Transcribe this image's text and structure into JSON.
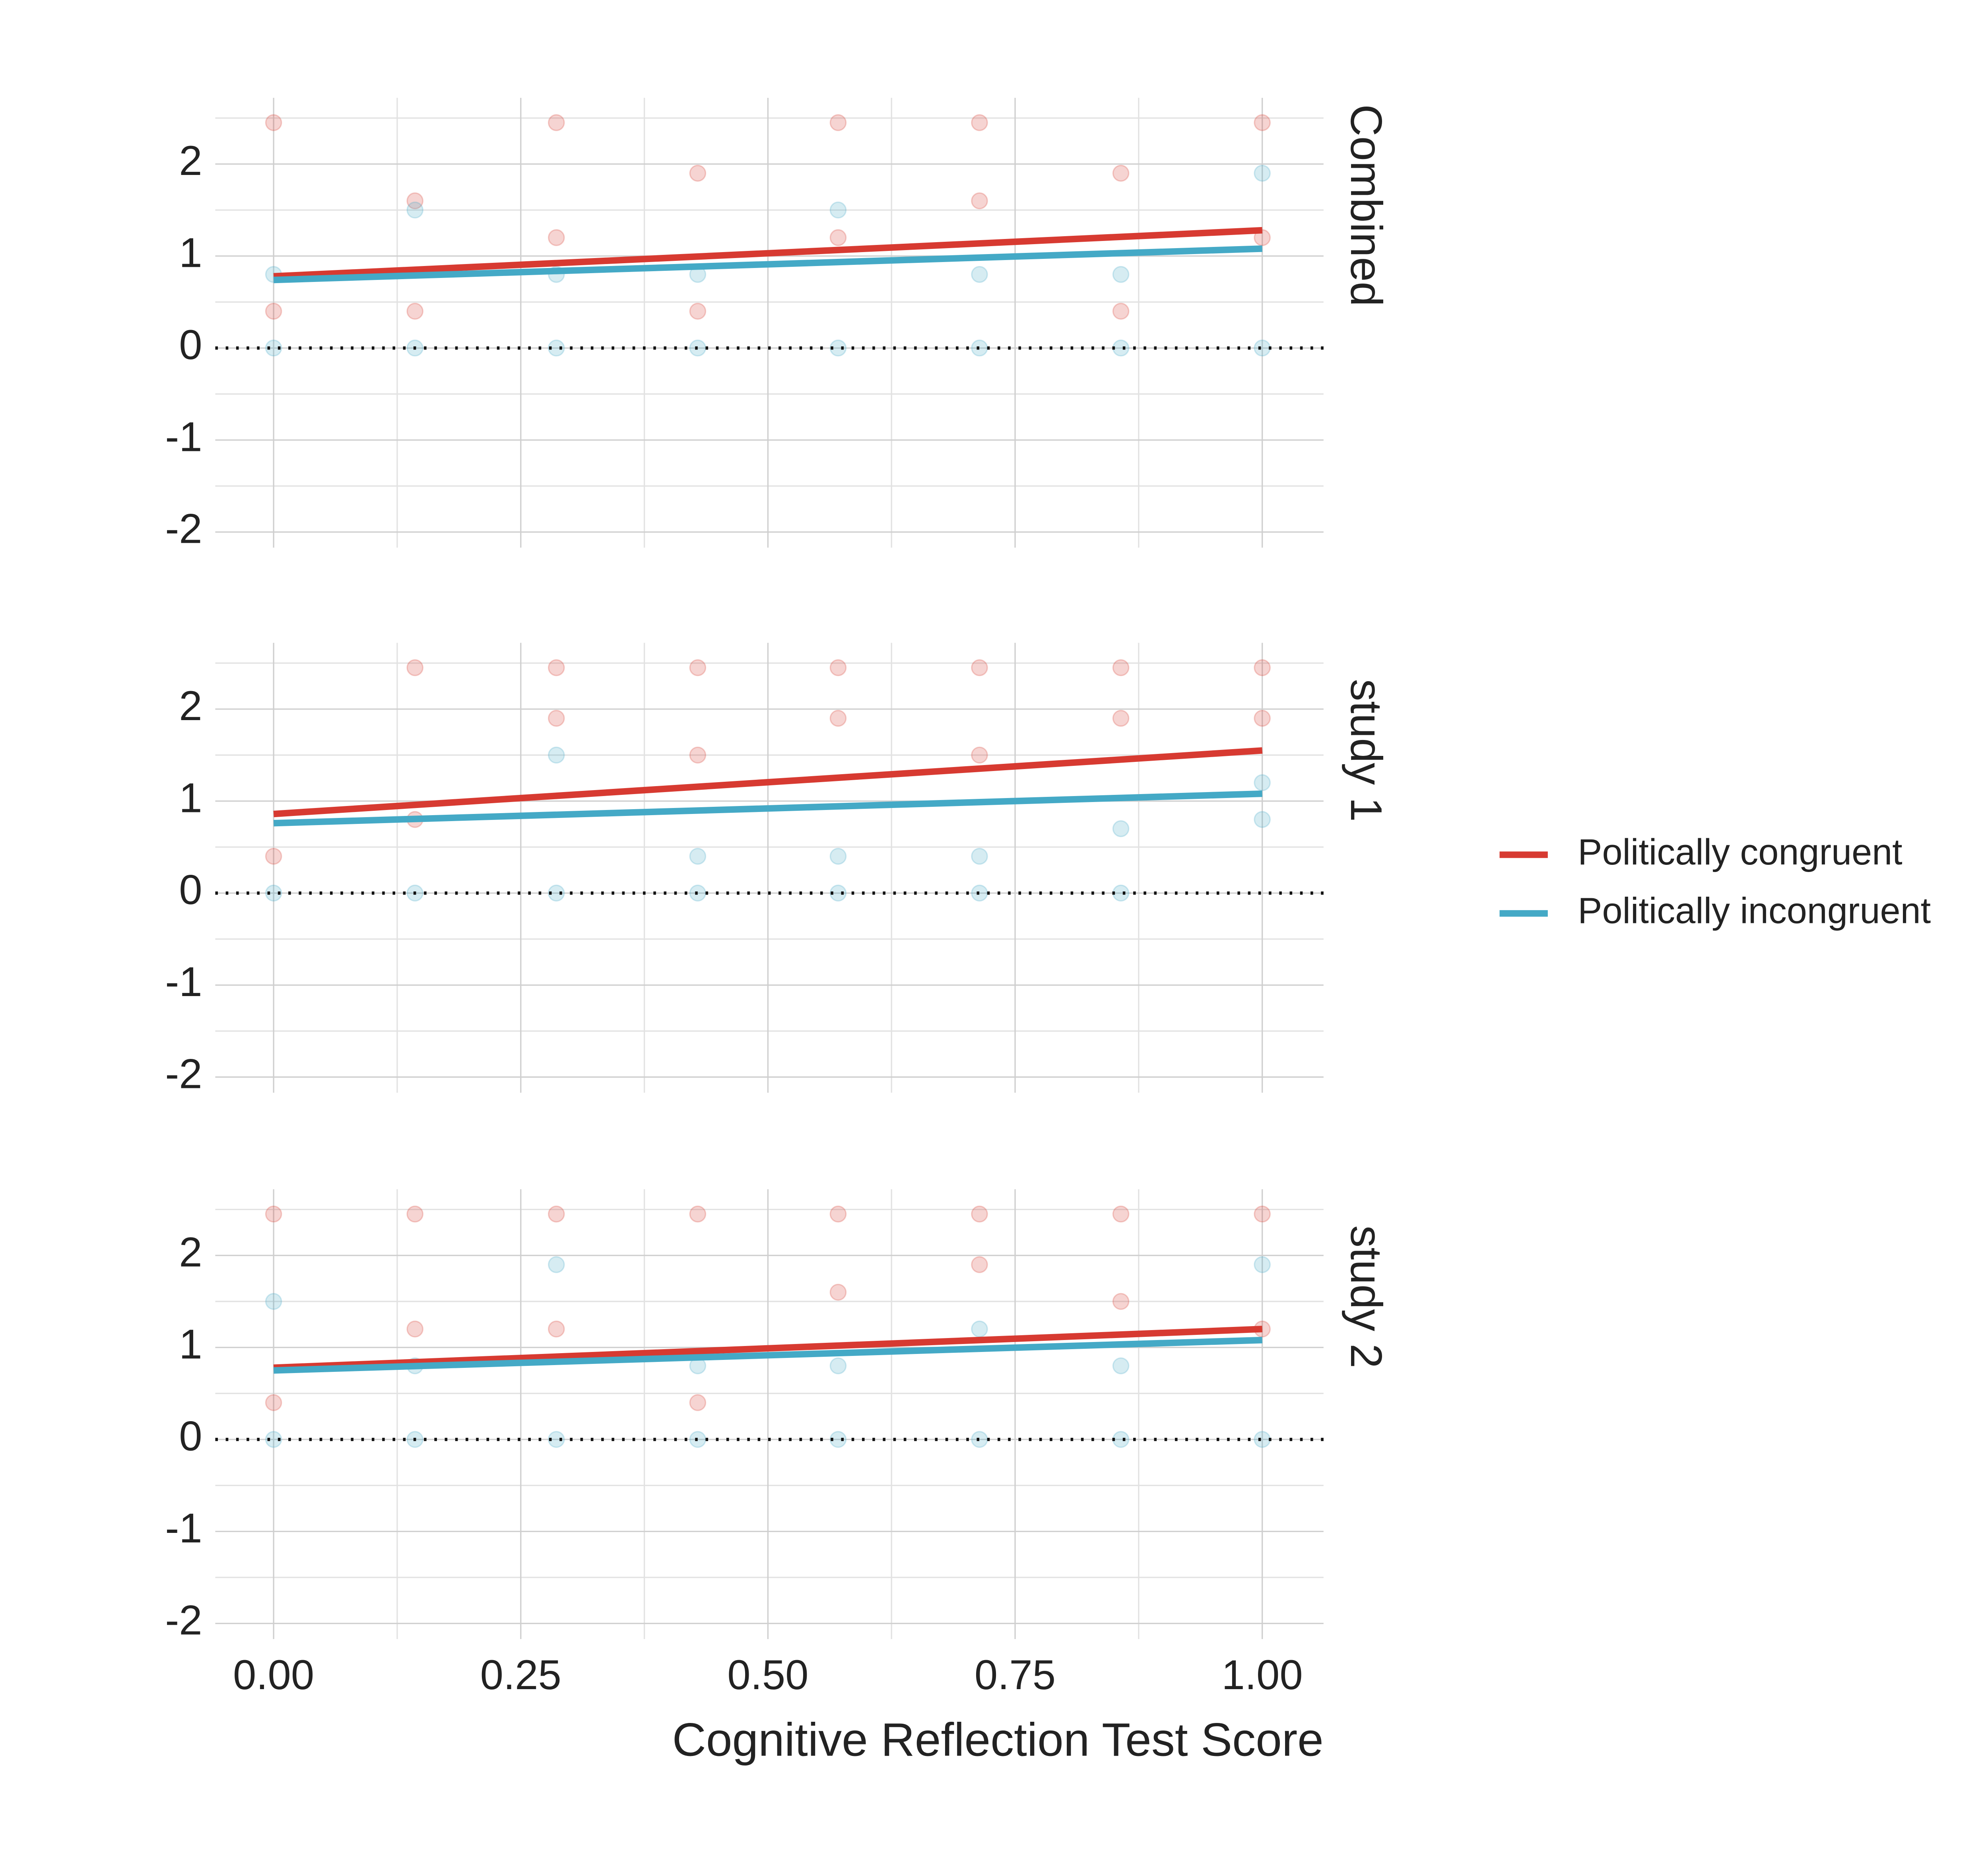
{
  "chart_data": [
    {
      "type": "line",
      "panel": "Combined",
      "ylim": [
        -2.17,
        2.72
      ],
      "yticks": [
        -2,
        -1,
        0,
        1,
        2
      ],
      "grid": true,
      "hline": 0,
      "legend": "right",
      "series": [
        {
          "name": "Politically congruent",
          "color": "#d73a31",
          "x": [
            0,
            1
          ],
          "values": [
            0.78,
            1.28
          ],
          "points": {
            "x": [
              0,
              0.143,
              0.286,
              0.429,
              0.571,
              0.714,
              0.857,
              1,
              0,
              0.143,
              0.286,
              0.429,
              0.571,
              0.714,
              0.857,
              1
            ],
            "y": [
              0.4,
              0.4,
              1.2,
              0.4,
              1.2,
              1.6,
              0.4,
              1.2,
              2.45,
              1.6,
              2.45,
              1.9,
              2.45,
              2.45,
              1.9,
              2.45
            ]
          }
        },
        {
          "name": "Politically incongruent",
          "color": "#44a9c6",
          "x": [
            0,
            1
          ],
          "values": [
            0.74,
            1.08
          ],
          "points": {
            "x": [
              0,
              0.143,
              0.286,
              0.429,
              0.571,
              0.714,
              0.857,
              1,
              0,
              0.143,
              0.286,
              0.429,
              0.571,
              0.714,
              0.857,
              1
            ],
            "y": [
              0,
              0,
              0,
              0,
              0,
              0,
              0,
              0,
              0.8,
              1.5,
              0.8,
              0.8,
              1.5,
              0.8,
              0.8,
              1.9
            ]
          }
        }
      ]
    },
    {
      "type": "line",
      "panel": "study 1",
      "ylim": [
        -2.17,
        2.72
      ],
      "yticks": [
        -2,
        -1,
        0,
        1,
        2
      ],
      "grid": true,
      "hline": 0,
      "series": [
        {
          "name": "Politically congruent",
          "color": "#d73a31",
          "x": [
            0,
            1
          ],
          "values": [
            0.86,
            1.55
          ],
          "points": {
            "x": [
              0,
              0.143,
              0.286,
              0.429,
              0.571,
              0.714,
              0.857,
              1,
              0.143,
              0.286,
              0.429,
              0.571,
              0.714,
              0.857,
              1
            ],
            "y": [
              0.4,
              0.8,
              1.9,
              1.5,
              1.9,
              2.45,
              1.9,
              1.9,
              2.45,
              2.45,
              2.45,
              2.45,
              1.5,
              2.45,
              2.45
            ]
          }
        },
        {
          "name": "Politically incongruent",
          "color": "#44a9c6",
          "x": [
            0,
            1
          ],
          "values": [
            0.76,
            1.08
          ],
          "points": {
            "x": [
              0,
              0.143,
              0.286,
              0.429,
              0.571,
              0.714,
              0.857,
              1,
              0.286,
              0.429,
              0.571,
              0.714,
              0.857,
              1
            ],
            "y": [
              0,
              0,
              0,
              0,
              0,
              0,
              0,
              0.8,
              1.5,
              0.4,
              0.4,
              0.4,
              0.7,
              1.2
            ]
          }
        }
      ]
    },
    {
      "type": "line",
      "panel": "study 2",
      "ylim": [
        -2.17,
        2.72
      ],
      "yticks": [
        -2,
        -1,
        0,
        1,
        2
      ],
      "grid": true,
      "hline": 0,
      "xlim": [
        -0.059,
        1.062
      ],
      "xticks": [
        {
          "value": 0,
          "label": "0.00"
        },
        {
          "value": 0.25,
          "label": "0.25"
        },
        {
          "value": 0.5,
          "label": "0.50"
        },
        {
          "value": 0.75,
          "label": "0.75"
        },
        {
          "value": 1,
          "label": "1.00"
        }
      ],
      "xlabel": "Cognitive Reflection Test Score",
      "series": [
        {
          "name": "Politically congruent",
          "color": "#d73a31",
          "x": [
            0,
            1
          ],
          "values": [
            0.78,
            1.2
          ],
          "points": {
            "x": [
              0,
              0.143,
              0.286,
              0.429,
              0.571,
              0.714,
              0.857,
              1,
              0,
              0.143,
              0.286,
              0.429,
              0.571,
              0.714,
              0.857,
              1
            ],
            "y": [
              0.4,
              1.2,
              1.2,
              0.4,
              1.6,
              1.9,
              1.5,
              1.2,
              2.45,
              2.45,
              2.45,
              2.45,
              2.45,
              2.45,
              2.45,
              2.45
            ]
          }
        },
        {
          "name": "Politically incongruent",
          "color": "#44a9c6",
          "x": [
            0,
            1
          ],
          "values": [
            0.75,
            1.08
          ],
          "points": {
            "x": [
              0,
              0.143,
              0.286,
              0.429,
              0.571,
              0.714,
              0.857,
              1,
              0,
              0.143,
              0.286,
              0.429,
              0.571,
              0.714,
              0.857,
              1
            ],
            "y": [
              0,
              0,
              0,
              0,
              0,
              0,
              0,
              0,
              1.5,
              0.8,
              1.9,
              0.8,
              0.8,
              1.2,
              0.8,
              1.9
            ]
          }
        }
      ]
    }
  ]
}
